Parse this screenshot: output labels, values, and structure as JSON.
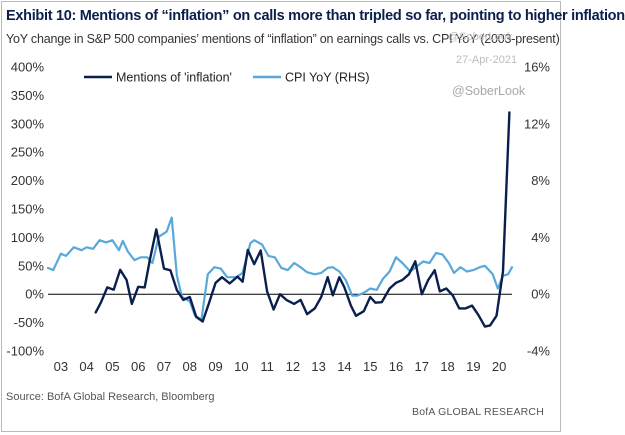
{
  "header": {
    "title": "Exhibit 10: Mentions of “inflation” on calls more than tripled so far, pointing to higher inflation",
    "subtitle": "YoY change in S&P 500 companies’ mentions of “inflation” on earnings calls vs. CPI YoY (2003-present)"
  },
  "watermark": {
    "faint": "@SoberLook",
    "date": "27-Apr-2021",
    "handle": "@SoberLook"
  },
  "footer": {
    "source": "Source: BofA Global Research, Bloomberg",
    "credit": "BofA GLOBAL RESEARCH"
  },
  "colors": {
    "mentions": "#0b1f4d",
    "cpi": "#5aa8da"
  },
  "chart_data": {
    "type": "line",
    "x_ticks": [
      "03",
      "04",
      "05",
      "06",
      "07",
      "08",
      "09",
      "10",
      "11",
      "12",
      "13",
      "14",
      "15",
      "16",
      "17",
      "18",
      "19",
      "20"
    ],
    "x_range": [
      2003,
      2021
    ],
    "left_axis": {
      "ylim": [
        -100,
        400
      ],
      "ticks": [
        "-100%",
        "-50%",
        "0%",
        "50%",
        "100%",
        "150%",
        "200%",
        "250%",
        "300%",
        "350%",
        "400%"
      ]
    },
    "right_axis": {
      "ylim": [
        -4,
        16
      ],
      "ticks": [
        "-4%",
        "0%",
        "4%",
        "8%",
        "12%",
        "16%"
      ]
    },
    "legend": {
      "placement": "top-left"
    },
    "series": [
      {
        "name": "Mentions of 'inflation'",
        "axis": "left",
        "points": [
          [
            2004.85,
            -32
          ],
          [
            2005.05,
            -15
          ],
          [
            2005.3,
            12
          ],
          [
            2005.55,
            8
          ],
          [
            2005.8,
            43
          ],
          [
            2006.05,
            25
          ],
          [
            2006.25,
            -17
          ],
          [
            2006.5,
            13
          ],
          [
            2006.75,
            12
          ],
          [
            2006.95,
            60
          ],
          [
            2007.2,
            114
          ],
          [
            2007.5,
            45
          ],
          [
            2007.75,
            42
          ],
          [
            2008.0,
            7
          ],
          [
            2008.25,
            -10
          ],
          [
            2008.5,
            -5
          ],
          [
            2008.75,
            -40
          ],
          [
            2009.0,
            -48
          ],
          [
            2009.25,
            -15
          ],
          [
            2009.5,
            20
          ],
          [
            2009.75,
            30
          ],
          [
            2010.05,
            19
          ],
          [
            2010.35,
            31
          ],
          [
            2010.55,
            22
          ],
          [
            2010.75,
            78
          ],
          [
            2011.0,
            53
          ],
          [
            2011.25,
            77
          ],
          [
            2011.5,
            5
          ],
          [
            2011.75,
            -27
          ],
          [
            2012.0,
            0
          ],
          [
            2012.25,
            -10
          ],
          [
            2012.55,
            -17
          ],
          [
            2012.8,
            -10
          ],
          [
            2013.05,
            -35
          ],
          [
            2013.35,
            -25
          ],
          [
            2013.6,
            -5
          ],
          [
            2013.85,
            30
          ],
          [
            2014.05,
            -2
          ],
          [
            2014.3,
            30
          ],
          [
            2014.5,
            12
          ],
          [
            2014.75,
            -20
          ],
          [
            2014.95,
            -38
          ],
          [
            2015.25,
            -30
          ],
          [
            2015.5,
            -5
          ],
          [
            2015.7,
            -15
          ],
          [
            2015.95,
            -14
          ],
          [
            2016.25,
            10
          ],
          [
            2016.5,
            20
          ],
          [
            2016.75,
            25
          ],
          [
            2017.0,
            35
          ],
          [
            2017.25,
            58
          ],
          [
            2017.5,
            0
          ],
          [
            2017.75,
            25
          ],
          [
            2018.0,
            42
          ],
          [
            2018.2,
            5
          ],
          [
            2018.45,
            10
          ],
          [
            2018.7,
            -2
          ],
          [
            2018.95,
            -25
          ],
          [
            2019.2,
            -25
          ],
          [
            2019.45,
            -20
          ],
          [
            2019.7,
            -37
          ],
          [
            2019.95,
            -57
          ],
          [
            2020.15,
            -55
          ],
          [
            2020.4,
            -38
          ],
          [
            2020.65,
            40
          ],
          [
            2020.9,
            320
          ]
        ]
      },
      {
        "name": "CPI YoY (RHS)",
        "axis": "right",
        "points": [
          [
            2003.0,
            1.85
          ],
          [
            2003.2,
            1.7
          ],
          [
            2003.5,
            2.85
          ],
          [
            2003.7,
            2.7
          ],
          [
            2004.0,
            3.3
          ],
          [
            2004.3,
            3.1
          ],
          [
            2004.5,
            3.3
          ],
          [
            2004.75,
            3.2
          ],
          [
            2005.0,
            3.8
          ],
          [
            2005.25,
            3.65
          ],
          [
            2005.5,
            3.8
          ],
          [
            2005.75,
            3.1
          ],
          [
            2005.9,
            3.75
          ],
          [
            2006.1,
            3.0
          ],
          [
            2006.35,
            2.4
          ],
          [
            2006.6,
            2.6
          ],
          [
            2006.85,
            2.6
          ],
          [
            2007.05,
            2.2
          ],
          [
            2007.3,
            4.05
          ],
          [
            2007.6,
            4.4
          ],
          [
            2007.8,
            5.4
          ],
          [
            2008.0,
            1.3
          ],
          [
            2008.2,
            -0.2
          ],
          [
            2008.5,
            -0.5
          ],
          [
            2008.7,
            -1.5
          ],
          [
            2008.95,
            -1.8
          ],
          [
            2009.2,
            1.4
          ],
          [
            2009.45,
            1.9
          ],
          [
            2009.7,
            1.8
          ],
          [
            2009.95,
            1.2
          ],
          [
            2010.3,
            1.2
          ],
          [
            2010.55,
            1.5
          ],
          [
            2010.85,
            3.6
          ],
          [
            2011.0,
            3.8
          ],
          [
            2011.3,
            3.5
          ],
          [
            2011.55,
            2.7
          ],
          [
            2011.8,
            2.6
          ],
          [
            2012.05,
            1.85
          ],
          [
            2012.3,
            1.7
          ],
          [
            2012.55,
            2.2
          ],
          [
            2012.8,
            1.9
          ],
          [
            2013.05,
            1.55
          ],
          [
            2013.35,
            1.4
          ],
          [
            2013.6,
            1.5
          ],
          [
            2013.85,
            1.85
          ],
          [
            2014.05,
            1.9
          ],
          [
            2014.3,
            1.6
          ],
          [
            2014.55,
            1.0
          ],
          [
            2014.8,
            -0.1
          ],
          [
            2015.0,
            -0.1
          ],
          [
            2015.25,
            0.1
          ],
          [
            2015.5,
            0.4
          ],
          [
            2015.75,
            0.3
          ],
          [
            2016.0,
            1.1
          ],
          [
            2016.25,
            1.6
          ],
          [
            2016.5,
            2.6
          ],
          [
            2016.75,
            2.2
          ],
          [
            2017.05,
            1.6
          ],
          [
            2017.3,
            1.95
          ],
          [
            2017.55,
            2.3
          ],
          [
            2017.8,
            2.2
          ],
          [
            2018.05,
            2.9
          ],
          [
            2018.3,
            2.8
          ],
          [
            2018.55,
            2.2
          ],
          [
            2018.75,
            1.5
          ],
          [
            2019.0,
            1.9
          ],
          [
            2019.25,
            1.6
          ],
          [
            2019.5,
            1.7
          ],
          [
            2019.75,
            1.9
          ],
          [
            2019.95,
            2.0
          ],
          [
            2020.25,
            1.4
          ],
          [
            2020.45,
            0.4
          ],
          [
            2020.65,
            1.3
          ],
          [
            2020.85,
            1.4
          ],
          [
            2021.0,
            1.9
          ]
        ]
      }
    ]
  }
}
